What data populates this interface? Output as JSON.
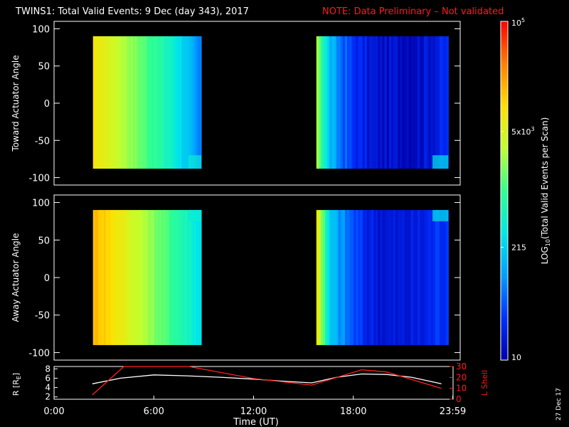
{
  "header": {
    "title": "TWINS1: Total Valid Events:  9 Dec (day 343), 2017",
    "note": "NOTE: Data Preliminary – Not validated"
  },
  "colorbar": {
    "label": "LOG10(Total Valid Events per Scan)",
    "label_base": "LOG",
    "label_sub": "10",
    "label_rest": "(Total Valid Events per Scan)",
    "ticks": [
      {
        "text": "10",
        "value": 10
      },
      {
        "text": "215",
        "value": 215
      },
      {
        "text": "5x10^3",
        "main": "5x10",
        "sup": "3",
        "value": 5000
      },
      {
        "text": "10^5",
        "main": "10",
        "sup": "5",
        "value": 100000
      }
    ],
    "colors": [
      "#0000aa",
      "#0030ff",
      "#00a0ff",
      "#00e8e8",
      "#30ff90",
      "#c0ff30",
      "#ffe000",
      "#ff8000",
      "#ff0000"
    ]
  },
  "timestamp": "27 Dec 17",
  "chart_data": [
    {
      "type": "heatmap",
      "ylabel": "Toward Actuator Angle",
      "ylim": [
        -110,
        110
      ],
      "yticks": [
        "100",
        "50",
        "0",
        "-50",
        "-100"
      ],
      "ytick_values": [
        100,
        50,
        0,
        -50,
        -100
      ],
      "xlim": [
        0,
        24
      ],
      "angle_range": [
        -88,
        90
      ],
      "blocks": [
        {
          "t_start": 2.3,
          "t_end": 8.7,
          "levels": [
            0.72,
            0.7,
            0.66,
            0.62,
            0.58,
            0.54,
            0.5,
            0.46,
            0.42,
            0.36,
            0.28,
            0.2
          ]
        },
        {
          "t_start": 15.5,
          "t_end": 23.3,
          "levels": [
            0.62,
            0.3,
            0.2,
            0.12,
            0.08,
            0.05,
            0.04,
            0.05,
            0.04,
            0.06,
            0.08,
            0.1
          ]
        }
      ]
    },
    {
      "type": "heatmap",
      "ylabel": "Away Actuator Angle",
      "ylim": [
        -110,
        110
      ],
      "yticks": [
        "100",
        "50",
        "0",
        "-50",
        "-100"
      ],
      "ytick_values": [
        100,
        50,
        0,
        -50,
        -100
      ],
      "xlim": [
        0,
        24
      ],
      "angle_range": [
        -90,
        90
      ],
      "blocks": [
        {
          "t_start": 2.3,
          "t_end": 8.7,
          "levels": [
            0.8,
            0.78,
            0.74,
            0.7,
            0.66,
            0.62,
            0.58,
            0.54,
            0.5,
            0.46,
            0.42,
            0.36
          ]
        },
        {
          "t_start": 15.5,
          "t_end": 23.3,
          "levels": [
            0.74,
            0.32,
            0.24,
            0.16,
            0.1,
            0.08,
            0.06,
            0.06,
            0.07,
            0.08,
            0.12,
            0.14
          ]
        }
      ]
    },
    {
      "type": "line",
      "ylabel": "R [RE]",
      "ylabel_main": "R [R",
      "ylabel_sub": "E",
      "ylabel_end": "]",
      "ylim": [
        1.5,
        8.5
      ],
      "yticks": [
        "8",
        "6",
        "4",
        "2"
      ],
      "ytick_values": [
        8,
        6,
        4,
        2
      ],
      "y2label": "L Shell",
      "y2lim": [
        0,
        30
      ],
      "y2ticks": [
        "30",
        "20",
        "10",
        "0"
      ],
      "y2tick_values": [
        30,
        20,
        10,
        0
      ],
      "xlabel": "Time (UT)",
      "xticks": [
        "0:00",
        "6:00",
        "12:00",
        "18:00",
        "23:59"
      ],
      "xtick_values": [
        0,
        6,
        12,
        18,
        23.98
      ],
      "series": [
        {
          "name": "R",
          "color": "#ffffff",
          "x": [
            2.3,
            4,
            6,
            8,
            10,
            12,
            14,
            15.5,
            17,
            18.5,
            20,
            21.5,
            23.3
          ],
          "y": [
            4.8,
            6.0,
            6.7,
            6.5,
            6.2,
            5.8,
            5.3,
            5.0,
            6.2,
            6.9,
            6.8,
            6.2,
            4.8
          ]
        },
        {
          "name": "L Shell",
          "color": "#ff2020",
          "x": [
            2.3,
            4.2,
            8.1,
            12,
            15.5,
            18.5,
            20,
            23.3
          ],
          "y": [
            4,
            30,
            30,
            19,
            13,
            27,
            25,
            10
          ]
        }
      ]
    }
  ]
}
